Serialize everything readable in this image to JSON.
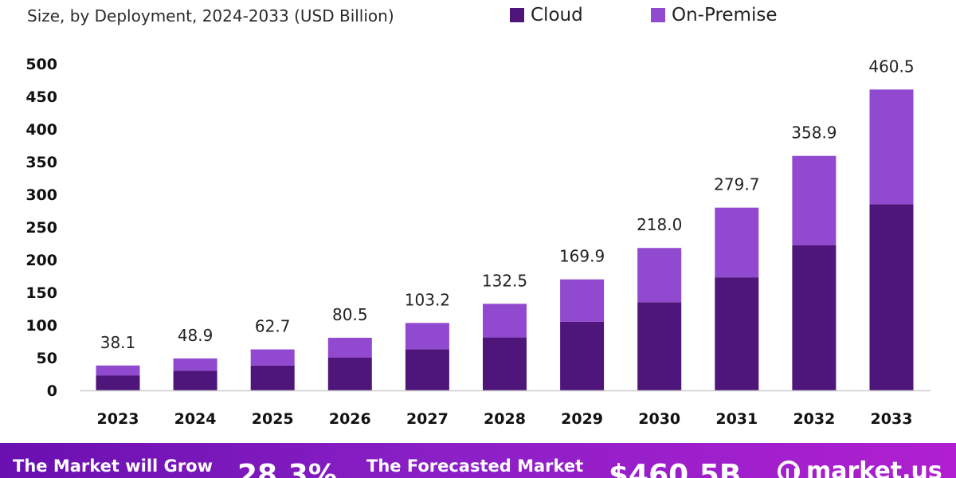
{
  "subtitle": "Size, by Deployment, 2024-2033 (USD Billion)",
  "legend": {
    "cloud": "Cloud",
    "on_premise": "On-Premise"
  },
  "colors": {
    "cloud": "#4e157a",
    "on_premise": "#9149cf",
    "axis": "#cccccc",
    "footer_start": "#6a0fb0",
    "footer_end": "#b01fd0"
  },
  "chart_data": {
    "type": "bar",
    "stacked": true,
    "title": "",
    "subtitle": "Size, by Deployment, 2024-2033 (USD Billion)",
    "xlabel": "",
    "ylabel": "",
    "ylim": [
      0,
      500
    ],
    "yticks": [
      "0",
      "50",
      "100",
      "150",
      "200",
      "250",
      "300",
      "350",
      "400",
      "450",
      "500"
    ],
    "categories": [
      "2023",
      "2024",
      "2025",
      "2026",
      "2027",
      "2028",
      "2029",
      "2030",
      "2031",
      "2032",
      "2033"
    ],
    "totals": [
      "38.1",
      "48.9",
      "62.7",
      "80.5",
      "103.2",
      "132.5",
      "169.9",
      "218.0",
      "279.7",
      "358.9",
      "460.5"
    ],
    "series": [
      {
        "name": "Cloud",
        "values": [
          23,
          30,
          38,
          50,
          63,
          81,
          105,
          135,
          173,
          222,
          285
        ]
      },
      {
        "name": "On-Premise",
        "values": [
          15.1,
          18.9,
          24.7,
          30.5,
          40.2,
          51.5,
          64.9,
          83.0,
          106.7,
          136.9,
          175.5
        ]
      }
    ],
    "grid": false,
    "legend_position": "top-right"
  },
  "footer": {
    "grow_text": "The Market will Grow",
    "cagr": "28.3%",
    "forecast_text": "The Forecasted Market",
    "value": "$460.5B",
    "logo": "market.us"
  }
}
